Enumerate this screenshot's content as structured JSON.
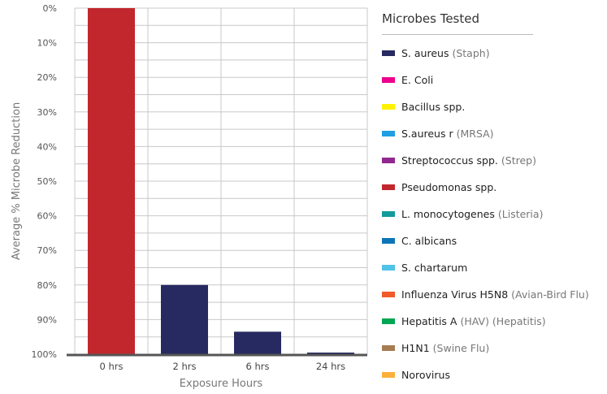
{
  "chart_data": {
    "type": "bar",
    "title": "",
    "xlabel": "Exposure Hours",
    "ylabel": "Average % Microbe Reduction",
    "categories": [
      "0 hrs",
      "2 hrs",
      "6 hrs",
      "24 hrs"
    ],
    "series": [
      {
        "name": "Pseudomonas spp.",
        "values": [
          0,
          null,
          null,
          null
        ]
      },
      {
        "name": "S. aureus (Staph)",
        "values": [
          null,
          80,
          93.5,
          99.6
        ]
      }
    ],
    "y_ticks": [
      "0%",
      "10%",
      "20%",
      "30%",
      "40%",
      "50%",
      "60%",
      "70%",
      "80%",
      "90%",
      "100%"
    ],
    "ylim": [
      0,
      100
    ],
    "y_inverted": true,
    "grid": true,
    "legend_position": "right"
  },
  "legend": {
    "title": "Microbes Tested",
    "items": [
      {
        "name": "S. aureus",
        "note": "(Staph)",
        "color": "#262a60"
      },
      {
        "name": "E. Coli",
        "note": "",
        "color": "#ec008c"
      },
      {
        "name": "Bacillus spp.",
        "note": "",
        "color": "#fff200"
      },
      {
        "name": "S.aureus r",
        "note": "(MRSA)",
        "color": "#1f9ee3"
      },
      {
        "name": "Streptococcus spp.",
        "note": "(Strep)",
        "color": "#92278f"
      },
      {
        "name": "Pseudomonas spp.",
        "note": "",
        "color": "#c1272d"
      },
      {
        "name": "L. monocytogenes",
        "note": "(Listeria)",
        "color": "#129b9b"
      },
      {
        "name": "C. albicans",
        "note": "",
        "color": "#0d75b7"
      },
      {
        "name": "S. chartarum",
        "note": "",
        "color": "#4fc3e8"
      },
      {
        "name": "Influenza Virus H5N8",
        "note": "(Avian-Bird Flu)",
        "color": "#f15a29"
      },
      {
        "name": "Hepatitis A",
        "note": "(HAV) (Hepatitis)",
        "color": "#00a651"
      },
      {
        "name": "H1N1",
        "note": "(Swine Flu)",
        "color": "#a67c52"
      },
      {
        "name": "Norovirus",
        "note": "",
        "color": "#fbb03b"
      }
    ]
  }
}
